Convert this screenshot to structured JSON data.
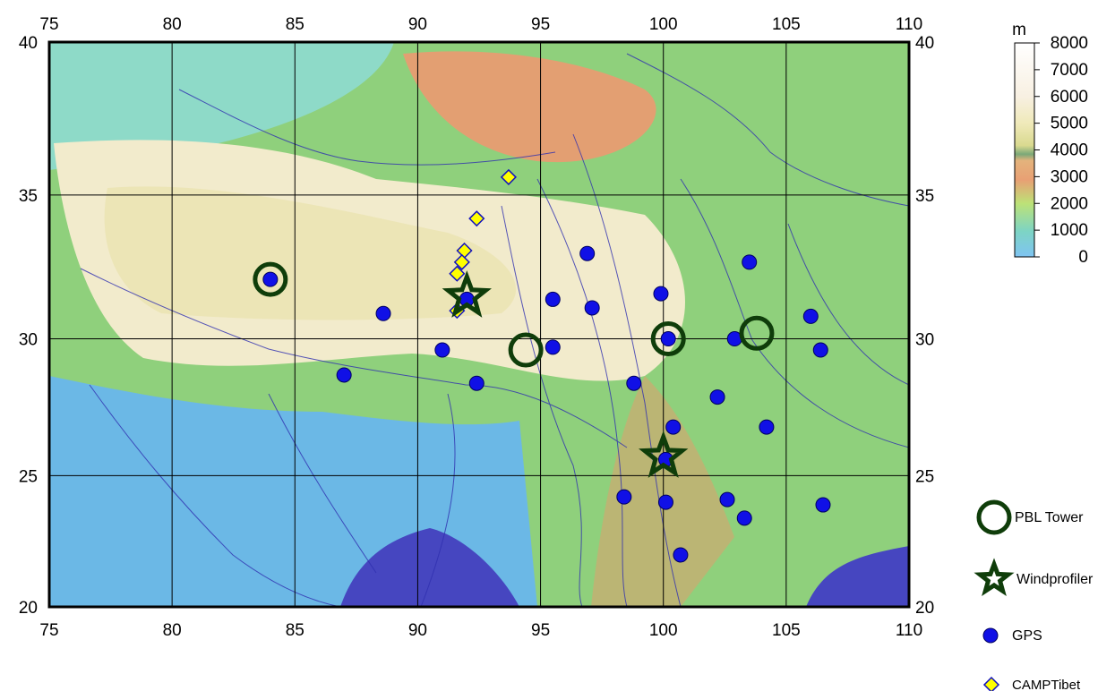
{
  "chart_data": {
    "type": "scatter",
    "projection": "mercator",
    "xlim": [
      75,
      110
    ],
    "ylim": [
      20,
      40
    ],
    "xticks": [
      75,
      80,
      85,
      90,
      95,
      100,
      105,
      110
    ],
    "yticks": [
      20,
      25,
      30,
      35,
      40
    ],
    "grid": true,
    "series": [
      {
        "name": "PBL Tower",
        "marker": "open-circle",
        "color": "#0f3d0a",
        "x": [
          84.0,
          94.4,
          100.2,
          103.8
        ],
        "values": [
          32.1,
          29.6,
          30.0,
          30.2
        ]
      },
      {
        "name": "Windprofiler",
        "marker": "star",
        "color": "#0f3d0a",
        "x": [
          92.0,
          100.0
        ],
        "values": [
          31.5,
          25.7
        ]
      },
      {
        "name": "GPS",
        "marker": "circle",
        "color": "#1010e6",
        "x": [
          84.0,
          88.6,
          91.0,
          87.0,
          92.4,
          92.0,
          95.5,
          95.5,
          96.9,
          97.1,
          99.9,
          100.2,
          98.8,
          102.2,
          100.4,
          100.1,
          98.4,
          102.6,
          100.1,
          100.7,
          103.3,
          104.2,
          106.5,
          102.9,
          103.5,
          106.0,
          106.4
        ],
        "values": [
          32.1,
          30.9,
          29.6,
          28.7,
          28.4,
          31.4,
          31.4,
          29.7,
          33.0,
          31.1,
          31.6,
          30.0,
          28.4,
          27.9,
          26.8,
          25.6,
          24.2,
          24.1,
          24.0,
          22.0,
          23.4,
          26.8,
          23.9,
          30.0,
          32.7,
          30.8,
          29.6
        ]
      },
      {
        "name": "CAMPTibet",
        "marker": "diamond",
        "color": "#ffff00",
        "x": [
          93.7,
          92.4,
          91.9,
          91.8,
          91.6,
          91.6
        ],
        "values": [
          35.6,
          34.2,
          33.1,
          32.7,
          32.3,
          31.0
        ]
      }
    ],
    "colorbar": {
      "label": "m",
      "lim": [
        0,
        8000
      ],
      "ticks": [
        0,
        1000,
        2000,
        3000,
        4000,
        5000,
        6000,
        7000,
        8000
      ]
    }
  }
}
